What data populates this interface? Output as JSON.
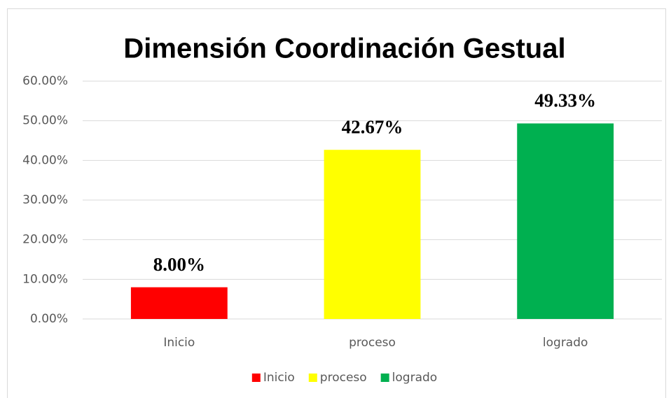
{
  "chart_data": {
    "type": "bar",
    "title": "Dimensión Coordinación Gestual",
    "categories": [
      "Inicio",
      "proceso",
      "logrado"
    ],
    "values": [
      8,
      42.67,
      49.33
    ],
    "value_labels": [
      "8.00%",
      "42.67%",
      "49.33%"
    ],
    "colors": [
      "#ff0000",
      "#ffff00",
      "#00b050"
    ],
    "ylim": [
      0,
      60
    ],
    "yticks": [
      {
        "value": 0,
        "label": "0.00%"
      },
      {
        "value": 10,
        "label": "10.00%"
      },
      {
        "value": 20,
        "label": "20.00%"
      },
      {
        "value": 30,
        "label": "30.00%"
      },
      {
        "value": 40,
        "label": "40.00%"
      },
      {
        "value": 50,
        "label": "50.00%"
      },
      {
        "value": 60,
        "label": "60.00%"
      }
    ],
    "grid": true,
    "legend": "bottom"
  }
}
